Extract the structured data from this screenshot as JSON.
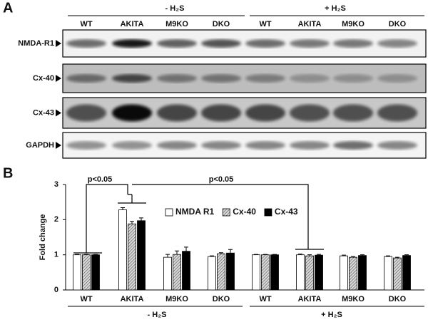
{
  "blot": {
    "panel_label": "A",
    "group_labels": [
      "- H₂S",
      "+ H₂S"
    ],
    "lanes": [
      "WT",
      "AKITA",
      "M9KO",
      "DKO",
      "WT",
      "AKITA",
      "M9KO",
      "DKO"
    ],
    "rows": [
      "NMDA-R1",
      "Cx-40",
      "Cx-43",
      "GAPDH"
    ]
  },
  "chart_data": {
    "type": "bar",
    "panel_label": "B",
    "y_label": "Fold change",
    "categories": [
      "WT",
      "AKITA",
      "M9KO",
      "DKO",
      "WT",
      "AKITA",
      "M9KO",
      "DKO"
    ],
    "group_labels": [
      "- H₂S",
      "+ H₂S"
    ],
    "ylim": [
      0,
      3
    ],
    "yticks": [
      0,
      1,
      2,
      3
    ],
    "annotations": [
      "p<0.05",
      "p<0.05"
    ],
    "series": [
      {
        "name": "NMDA R1",
        "color": "#ffffff",
        "values": [
          1,
          2.28,
          0.93,
          0.95,
          1,
          1.0,
          0.97,
          0.95
        ],
        "errors": [
          0.01,
          0.06,
          0.08,
          0.02,
          0.01,
          0.02,
          0.02,
          0.02
        ]
      },
      {
        "name": "Cx-40",
        "color": "#9a9a9a",
        "hatch": true,
        "values": [
          1,
          1.88,
          1.01,
          1.03,
          1,
          0.97,
          0.93,
          0.91
        ],
        "errors": [
          0.01,
          0.07,
          0.1,
          0.03,
          0.01,
          0.03,
          0.02,
          0.02
        ]
      },
      {
        "name": "Cx-43",
        "color": "#000000",
        "values": [
          1,
          1.97,
          1.1,
          1.05,
          1,
          0.99,
          0.98,
          0.98
        ],
        "errors": [
          0.01,
          0.08,
          0.12,
          0.1,
          0.01,
          0.02,
          0.02,
          0.02
        ]
      }
    ],
    "legend": "top-center"
  }
}
